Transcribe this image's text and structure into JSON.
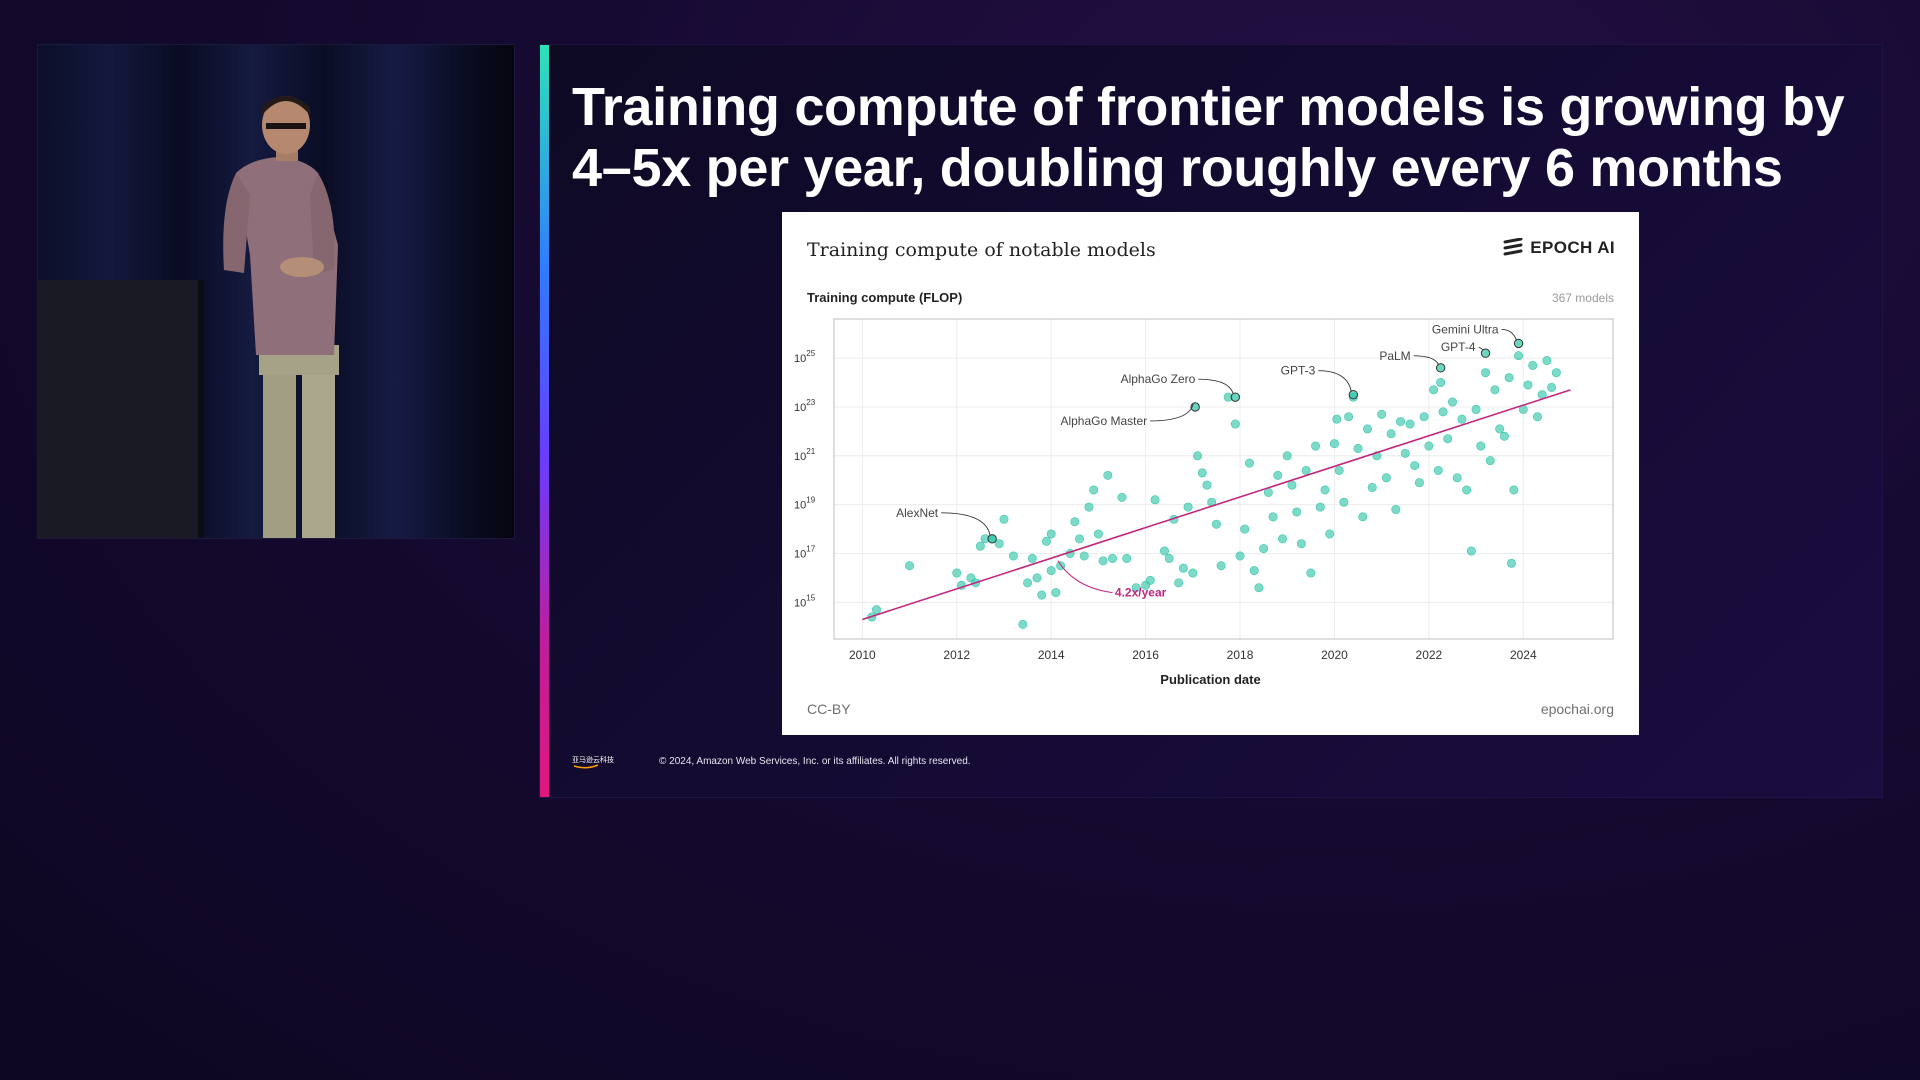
{
  "slide": {
    "title": "Training compute of frontier models is growing by 4–5x per year, doubling roughly every 6 months",
    "copyright": "© 2024, Amazon Web Services, Inc. or its affiliates. All rights reserved.",
    "logo_text": "亚马逊云科技"
  },
  "figure": {
    "title": "Training compute of notable models",
    "brand": "EPOCH AI",
    "model_count": "367 models",
    "license": "CC-BY",
    "source": "epochai.org"
  },
  "colors": {
    "point": "#2ec4a6",
    "trend": "#c2287f",
    "accent_top": "#2ee3b8",
    "accent_bottom": "#e01880"
  },
  "chart_data": {
    "type": "scatter",
    "title": "Training compute of notable models",
    "ylabel": "Training compute (FLOP)",
    "xlabel": "Publication date",
    "xlim": [
      2009.4,
      2025.9
    ],
    "ylim": [
      13.5,
      26.6
    ],
    "y_scale": "log10",
    "grid": true,
    "x_ticks": [
      "2010",
      "2012",
      "2014",
      "2016",
      "2018",
      "2020",
      "2022",
      "2024"
    ],
    "y_ticks": [
      {
        "base": "10",
        "exp": "15",
        "value": 15
      },
      {
        "base": "10",
        "exp": "17",
        "value": 17
      },
      {
        "base": "10",
        "exp": "19",
        "value": 19
      },
      {
        "base": "10",
        "exp": "21",
        "value": 21
      },
      {
        "base": "10",
        "exp": "23",
        "value": 23
      },
      {
        "base": "10",
        "exp": "25",
        "value": 25
      }
    ],
    "trend": {
      "label": "4.2x/year",
      "x1": 2010.0,
      "y1": 14.3,
      "x2": 2025.0,
      "y2": 23.7
    },
    "annotations": [
      {
        "text": "AlexNet",
        "x": 2012.75,
        "y": 17.6
      },
      {
        "text": "AlphaGo Master",
        "x": 2017.05,
        "y": 23.0
      },
      {
        "text": "AlphaGo Zero",
        "x": 2017.9,
        "y": 23.4
      },
      {
        "text": "GPT-3",
        "x": 2020.4,
        "y": 23.5
      },
      {
        "text": "PaLM",
        "x": 2022.25,
        "y": 24.6
      },
      {
        "text": "GPT-4",
        "x": 2023.2,
        "y": 25.2
      },
      {
        "text": "Gemini Ultra",
        "x": 2023.9,
        "y": 25.6
      }
    ],
    "points": [
      [
        2010.2,
        14.4
      ],
      [
        2010.3,
        14.7
      ],
      [
        2011.0,
        16.5
      ],
      [
        2012.0,
        16.2
      ],
      [
        2012.1,
        15.7
      ],
      [
        2012.3,
        16.0
      ],
      [
        2012.4,
        15.8
      ],
      [
        2012.5,
        17.3
      ],
      [
        2012.6,
        17.6
      ],
      [
        2012.75,
        17.6
      ],
      [
        2012.9,
        17.4
      ],
      [
        2013.0,
        18.4
      ],
      [
        2013.2,
        16.9
      ],
      [
        2013.4,
        14.1
      ],
      [
        2013.5,
        15.8
      ],
      [
        2013.6,
        16.8
      ],
      [
        2013.7,
        16.0
      ],
      [
        2013.8,
        15.3
      ],
      [
        2013.9,
        17.5
      ],
      [
        2014.0,
        17.8
      ],
      [
        2014.0,
        16.3
      ],
      [
        2014.1,
        15.4
      ],
      [
        2014.2,
        16.5
      ],
      [
        2014.4,
        17.0
      ],
      [
        2014.5,
        18.3
      ],
      [
        2014.6,
        17.6
      ],
      [
        2014.7,
        16.9
      ],
      [
        2014.8,
        18.9
      ],
      [
        2014.9,
        19.6
      ],
      [
        2015.0,
        17.8
      ],
      [
        2015.1,
        16.7
      ],
      [
        2015.2,
        20.2
      ],
      [
        2015.3,
        16.8
      ],
      [
        2015.5,
        19.3
      ],
      [
        2015.6,
        16.8
      ],
      [
        2015.8,
        15.6
      ],
      [
        2016.0,
        15.7
      ],
      [
        2016.1,
        15.9
      ],
      [
        2016.2,
        19.2
      ],
      [
        2016.4,
        17.1
      ],
      [
        2016.5,
        16.8
      ],
      [
        2016.6,
        18.4
      ],
      [
        2016.7,
        15.8
      ],
      [
        2016.8,
        16.4
      ],
      [
        2016.9,
        18.9
      ],
      [
        2017.0,
        16.2
      ],
      [
        2017.1,
        21.0
      ],
      [
        2017.2,
        20.3
      ],
      [
        2017.3,
        19.8
      ],
      [
        2017.4,
        19.1
      ],
      [
        2017.5,
        18.2
      ],
      [
        2017.6,
        16.5
      ],
      [
        2017.75,
        23.4
      ],
      [
        2017.9,
        22.3
      ],
      [
        2018.0,
        16.9
      ],
      [
        2018.1,
        18.0
      ],
      [
        2018.2,
        20.7
      ],
      [
        2018.3,
        16.3
      ],
      [
        2018.4,
        15.6
      ],
      [
        2018.5,
        17.2
      ],
      [
        2018.6,
        19.5
      ],
      [
        2018.7,
        18.5
      ],
      [
        2018.8,
        20.2
      ],
      [
        2018.9,
        17.6
      ],
      [
        2019.0,
        21.0
      ],
      [
        2019.1,
        19.8
      ],
      [
        2019.2,
        18.7
      ],
      [
        2019.3,
        17.4
      ],
      [
        2019.4,
        20.4
      ],
      [
        2019.5,
        16.2
      ],
      [
        2019.6,
        21.4
      ],
      [
        2019.7,
        18.9
      ],
      [
        2019.8,
        19.6
      ],
      [
        2019.9,
        17.8
      ],
      [
        2020.0,
        21.5
      ],
      [
        2020.05,
        22.5
      ],
      [
        2020.1,
        20.4
      ],
      [
        2020.2,
        19.1
      ],
      [
        2020.3,
        22.6
      ],
      [
        2020.4,
        23.4
      ],
      [
        2020.5,
        21.3
      ],
      [
        2020.6,
        18.5
      ],
      [
        2020.7,
        22.1
      ],
      [
        2020.8,
        19.7
      ],
      [
        2020.9,
        21.0
      ],
      [
        2021.0,
        22.7
      ],
      [
        2021.1,
        20.1
      ],
      [
        2021.2,
        21.9
      ],
      [
        2021.3,
        18.8
      ],
      [
        2021.4,
        22.4
      ],
      [
        2021.5,
        21.1
      ],
      [
        2021.6,
        22.3
      ],
      [
        2021.7,
        20.6
      ],
      [
        2021.8,
        19.9
      ],
      [
        2021.9,
        22.6
      ],
      [
        2022.0,
        21.4
      ],
      [
        2022.1,
        23.7
      ],
      [
        2022.2,
        20.4
      ],
      [
        2022.25,
        24.0
      ],
      [
        2022.3,
        22.8
      ],
      [
        2022.4,
        21.7
      ],
      [
        2022.5,
        23.2
      ],
      [
        2022.6,
        20.1
      ],
      [
        2022.7,
        22.5
      ],
      [
        2022.8,
        19.6
      ],
      [
        2022.9,
        17.1
      ],
      [
        2023.0,
        22.9
      ],
      [
        2023.1,
        21.4
      ],
      [
        2023.2,
        24.4
      ],
      [
        2023.3,
        20.8
      ],
      [
        2023.4,
        23.7
      ],
      [
        2023.5,
        22.1
      ],
      [
        2023.6,
        21.8
      ],
      [
        2023.7,
        24.2
      ],
      [
        2023.75,
        16.6
      ],
      [
        2023.8,
        19.6
      ],
      [
        2023.9,
        25.1
      ],
      [
        2024.0,
        22.9
      ],
      [
        2024.1,
        23.9
      ],
      [
        2024.2,
        24.7
      ],
      [
        2024.3,
        22.6
      ],
      [
        2024.4,
        23.5
      ],
      [
        2024.5,
        24.9
      ],
      [
        2024.6,
        23.8
      ],
      [
        2024.7,
        24.4
      ]
    ]
  }
}
